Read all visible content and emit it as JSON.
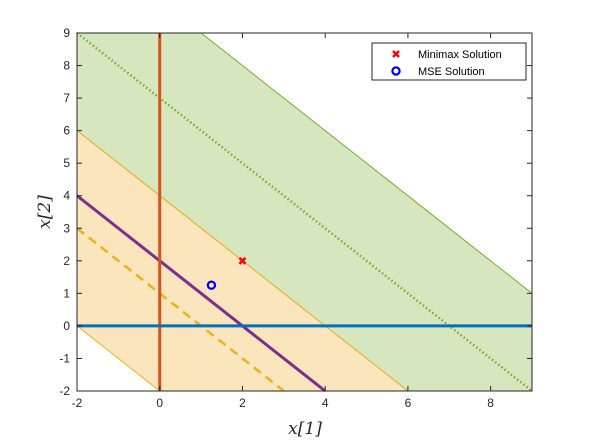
{
  "chart_data": {
    "type": "line",
    "title": "",
    "xlabel": "x[1]",
    "ylabel": "x[2]",
    "xlim": [
      -2,
      9
    ],
    "ylim": [
      -2,
      9
    ],
    "xticks": [
      -2,
      0,
      2,
      4,
      6,
      8
    ],
    "yticks": [
      -2,
      -1,
      0,
      1,
      2,
      3,
      4,
      5,
      6,
      7,
      8,
      9
    ],
    "grid": false,
    "legend_placement": "top-right",
    "regions": [
      {
        "color": "#d6e6bf",
        "edge": "#77ac30",
        "bounds": "4 <= x1 + x2 <= 10"
      },
      {
        "color": "#fbe5bd",
        "edge": "#edb120",
        "bounds": "-2 <= x1 + x2 <= 4"
      }
    ],
    "lines": [
      {
        "style": "dotted",
        "color": "#77ac30",
        "points": [
          [
            -2,
            9
          ],
          [
            9,
            -2
          ]
        ]
      },
      {
        "style": "dashed",
        "color": "#edb120",
        "points": [
          [
            -2,
            3
          ],
          [
            3,
            -2
          ]
        ]
      },
      {
        "style": "solid",
        "color": "#7e2f8e",
        "points": [
          [
            -2,
            4
          ],
          [
            4,
            -2
          ]
        ]
      },
      {
        "style": "solid",
        "color": "#d95319",
        "points": [
          [
            0,
            -2
          ],
          [
            0,
            9
          ]
        ]
      },
      {
        "style": "solid",
        "color": "#0072bd",
        "points": [
          [
            -2,
            0
          ],
          [
            9,
            0
          ]
        ]
      }
    ],
    "points": [
      {
        "name": "Minimax Solution",
        "marker": "x",
        "color": "#ff0000",
        "x": 2,
        "y": 2
      },
      {
        "name": "MSE Solution",
        "marker": "o",
        "color": "#0000ff",
        "x": 1.25,
        "y": 1.25
      }
    ]
  }
}
